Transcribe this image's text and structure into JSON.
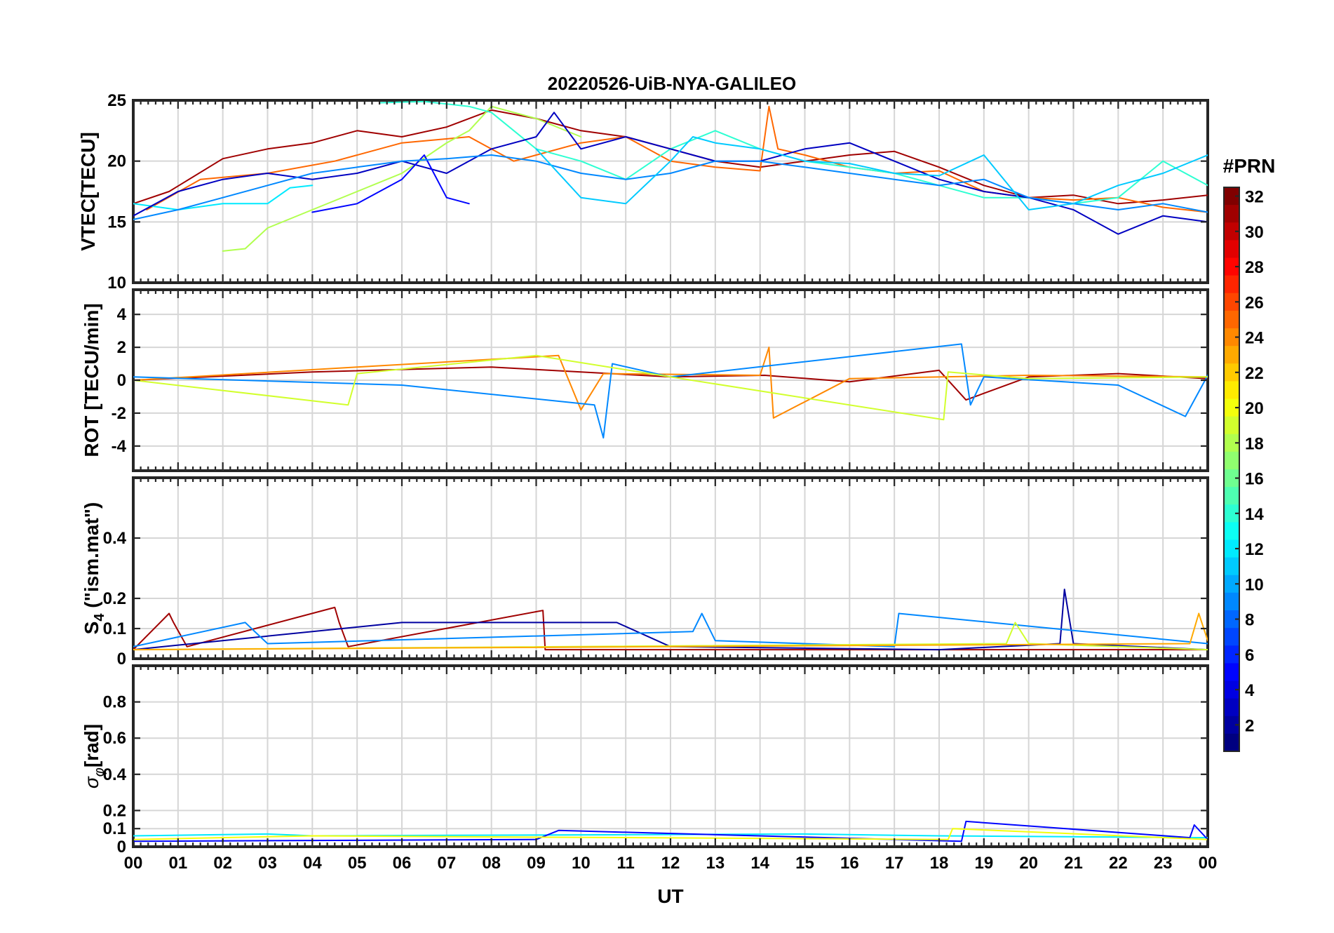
{
  "chart_data": {
    "type": "line",
    "title": "20220526-UiB-NYA-GALILEO",
    "xlabel": "UT",
    "x_ticklabels": [
      "00",
      "01",
      "02",
      "03",
      "04",
      "05",
      "06",
      "07",
      "08",
      "09",
      "10",
      "11",
      "12",
      "13",
      "14",
      "15",
      "16",
      "17",
      "18",
      "19",
      "20",
      "21",
      "22",
      "23",
      "00"
    ],
    "xlim": [
      0,
      24
    ],
    "colorbar": {
      "title": "#PRN",
      "range": [
        1,
        32
      ],
      "ticks": [
        "32",
        "30",
        "28",
        "26",
        "24",
        "22",
        "20",
        "18",
        "16",
        "14",
        "12",
        "10",
        "8",
        "6",
        "4",
        "2"
      ]
    },
    "panels": [
      {
        "id": "vtec",
        "ylabel": "VTEC[TECU]",
        "ylim": [
          10,
          25
        ],
        "yticks": [
          10,
          15,
          20,
          25
        ],
        "ytick_labels": [
          "10",
          "15",
          "20",
          "25"
        ],
        "series": [
          {
            "prn": 31,
            "x": [
              0.0,
              0.8,
              2,
              3,
              4,
              5,
              6,
              7,
              8,
              9,
              10,
              11,
              12,
              13,
              14,
              15,
              16,
              17,
              18,
              19,
              20,
              21,
              22,
              23,
              24
            ],
            "y": [
              16.5,
              17.5,
              20.2,
              21,
              21.5,
              22.5,
              22,
              22.8,
              24.2,
              23.5,
              22.5,
              22,
              21,
              20,
              19.5,
              20,
              20.5,
              20.8,
              19.5,
              18,
              17,
              17.2,
              16.5,
              16.8,
              17.2
            ]
          },
          {
            "prn": 25,
            "x": [
              0.3,
              1.5,
              3,
              4.5,
              6,
              7.5,
              8.5,
              10,
              11,
              12,
              13,
              14,
              14.2,
              14.4,
              15,
              16,
              17,
              18,
              19,
              20,
              21,
              22,
              23,
              24
            ],
            "y": [
              16,
              18.5,
              19,
              20,
              21.5,
              22,
              20,
              21.5,
              22,
              20,
              19.5,
              19.2,
              24.5,
              21,
              20.5,
              19.5,
              19,
              19.2,
              17.5,
              17,
              16.8,
              17,
              16.2,
              15.8
            ]
          },
          {
            "prn": 18,
            "x": [
              2,
              2.5,
              3,
              4,
              5,
              6,
              7,
              7.5,
              8,
              9,
              10
            ],
            "y": [
              12.6,
              12.8,
              14.5,
              16,
              17.5,
              19,
              21.5,
              22.5,
              24.5,
              23.5,
              22
            ]
          },
          {
            "prn": 12,
            "x": [
              0,
              1,
              2,
              3,
              3.5,
              4
            ],
            "y": [
              16.5,
              16,
              16.5,
              16.5,
              17.8,
              18
            ]
          },
          {
            "prn": 14,
            "x": [
              5.5,
              6.5,
              7.5,
              8,
              9,
              10,
              11,
              12,
              13,
              14,
              15,
              16,
              17,
              18,
              19,
              20,
              21,
              22,
              23,
              24
            ],
            "y": [
              24.8,
              24.9,
              24.5,
              24,
              21,
              20,
              18.5,
              21,
              22.5,
              21,
              20,
              19.5,
              19,
              18,
              17,
              17,
              16.5,
              17,
              20,
              18
            ]
          },
          {
            "prn": 3,
            "x": [
              0,
              1,
              2,
              3,
              4,
              5,
              6,
              7,
              8,
              9,
              9.4,
              10,
              11,
              12,
              13,
              14,
              15,
              16,
              17,
              18,
              19,
              20,
              21,
              22,
              23,
              24
            ],
            "y": [
              15.5,
              17.5,
              18.5,
              19,
              18.5,
              19,
              20,
              19,
              21,
              22,
              24,
              21,
              22,
              21,
              20,
              20,
              21,
              21.5,
              20,
              18.5,
              17.5,
              17,
              16,
              14,
              15.5,
              15
            ]
          },
          {
            "prn": 5,
            "x": [
              4,
              5,
              6,
              6.5,
              7,
              7.5
            ],
            "y": [
              15.8,
              16.5,
              18.5,
              20.5,
              17,
              16.5
            ]
          },
          {
            "prn": 9,
            "x": [
              0,
              1,
              2,
              3,
              4,
              5,
              6,
              7,
              8,
              9,
              10,
              11,
              12,
              13,
              14,
              15,
              16,
              17,
              18,
              19,
              20,
              21,
              22,
              23,
              24
            ],
            "y": [
              15.2,
              16,
              17,
              18,
              19,
              19.5,
              20,
              20.2,
              20.5,
              20,
              19,
              18.5,
              19,
              20,
              20,
              19.5,
              19,
              18.5,
              18,
              18.5,
              17,
              16.5,
              16,
              16.5,
              15.8
            ]
          },
          {
            "prn": 11,
            "x": [
              9,
              10,
              11,
              12,
              12.5,
              13,
              14,
              15,
              16,
              17,
              18,
              19,
              20,
              21,
              22,
              23,
              24
            ],
            "y": [
              21,
              17,
              16.5,
              20,
              22,
              21.5,
              21,
              20,
              19.8,
              19,
              18.8,
              20.5,
              16,
              16.5,
              18,
              19,
              20.5
            ]
          }
        ]
      },
      {
        "id": "rot",
        "ylabel": "ROT [TECU/min]",
        "ylim": [
          -5.5,
          5.5
        ],
        "yticks": [
          -4,
          -2,
          0,
          2,
          4
        ],
        "ytick_labels": [
          "-4",
          "-2",
          "0",
          "2",
          "4"
        ],
        "series": [
          {
            "prn": 31,
            "x": [
              0,
              4,
              8,
              12,
              14.1,
              16,
              18,
              18.6,
              20,
              22,
              24
            ],
            "y": [
              0,
              0.5,
              0.8,
              0.2,
              0.3,
              -0.1,
              0.6,
              -1.2,
              0.2,
              0.4,
              0.1
            ]
          },
          {
            "prn": 24,
            "x": [
              0,
              5,
              9.5,
              10,
              10.5,
              14,
              14.2,
              14.3,
              16,
              20,
              24
            ],
            "y": [
              0,
              0.8,
              1.5,
              -1.8,
              0.4,
              0.3,
              2.0,
              -2.3,
              0.1,
              0.3,
              0.2
            ]
          },
          {
            "prn": 9,
            "x": [
              0,
              6,
              10.3,
              10.5,
              10.7,
              12,
              18.5,
              18.7,
              19,
              22,
              23.5,
              24
            ],
            "y": [
              0.2,
              -0.3,
              -1.5,
              -3.5,
              1.0,
              0.2,
              2.2,
              -1.5,
              0.2,
              -0.3,
              -2.2,
              0.3
            ]
          },
          {
            "prn": 19,
            "x": [
              0,
              4.8,
              5,
              9,
              12,
              18.1,
              18.2,
              20,
              24
            ],
            "y": [
              0,
              -1.5,
              0.4,
              1.5,
              0.2,
              -2.4,
              0.5,
              0.1,
              0.2
            ]
          }
        ]
      },
      {
        "id": "s4",
        "ylabel": "S4 (\"ism.mat\")",
        "ylabel_main": "S",
        "ylabel_sub": "4",
        "ylabel_rest": " (\"ism.mat\")",
        "ylim": [
          0,
          0.6
        ],
        "yticks": [
          0,
          0.1,
          0.2,
          0.4
        ],
        "ytick_labels": [
          "0",
          "0.1",
          "0.2",
          "0.4"
        ],
        "series": [
          {
            "prn": 31,
            "x": [
              0,
              0.8,
              0.9,
              1.2,
              4.5,
              4.6,
              4.8,
              9.15,
              9.2,
              24
            ],
            "y": [
              0.03,
              0.15,
              0.12,
              0.04,
              0.17,
              0.12,
              0.04,
              0.16,
              0.03,
              0.03
            ]
          },
          {
            "prn": 2,
            "x": [
              0,
              6,
              10.8,
              12,
              18,
              20.7,
              20.8,
              21,
              24
            ],
            "y": [
              0.03,
              0.12,
              0.12,
              0.04,
              0.03,
              0.05,
              0.23,
              0.05,
              0.03
            ]
          },
          {
            "prn": 9,
            "x": [
              0,
              2.5,
              3,
              12.5,
              12.7,
              13,
              17,
              17.1,
              24
            ],
            "y": [
              0.04,
              0.12,
              0.05,
              0.09,
              0.15,
              0.06,
              0.04,
              0.15,
              0.05
            ]
          },
          {
            "prn": 19,
            "x": [
              0,
              19.5,
              19.7,
              20,
              24
            ],
            "y": [
              0.03,
              0.05,
              0.12,
              0.05,
              0.03
            ]
          },
          {
            "prn": 23,
            "x": [
              0,
              23.6,
              23.8,
              24
            ],
            "y": [
              0.03,
              0.05,
              0.15,
              0.06
            ]
          }
        ]
      },
      {
        "id": "sigma",
        "ylabel": "σφ[rad]",
        "ylabel_main": "σ",
        "ylabel_sub": "φ",
        "ylabel_rest": "[rad]",
        "ylim": [
          0,
          1.0
        ],
        "yticks": [
          0,
          0.1,
          0.2,
          0.4,
          0.6,
          0.8
        ],
        "ytick_labels": [
          "0",
          "0.1",
          "0.2",
          "0.4",
          "0.6",
          "0.8"
        ],
        "series": [
          {
            "prn": 12,
            "x": [
              0,
              3,
              4,
              15,
              18,
              24
            ],
            "y": [
              0.06,
              0.07,
              0.06,
              0.07,
              0.06,
              0.05
            ]
          },
          {
            "prn": 5,
            "x": [
              0,
              9,
              9.5,
              18.5,
              18.6,
              23.6,
              23.7,
              24
            ],
            "y": [
              0.03,
              0.04,
              0.09,
              0.03,
              0.14,
              0.05,
              0.12,
              0.04
            ]
          },
          {
            "prn": 20,
            "x": [
              0,
              4,
              18.2,
              18.3,
              24
            ],
            "y": [
              0.04,
              0.06,
              0.04,
              0.1,
              0.04
            ]
          }
        ]
      }
    ]
  }
}
